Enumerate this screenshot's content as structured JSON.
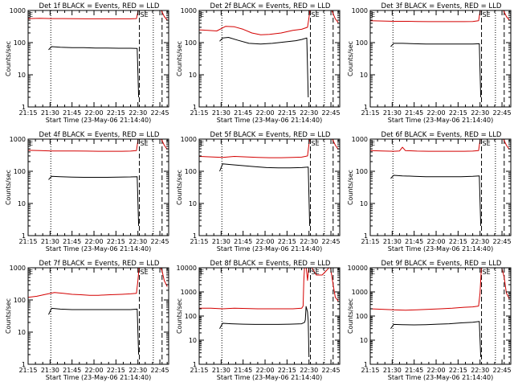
{
  "figure": {
    "y_axis_label": "Counts/sec",
    "x_axis_label": "Start Time (23-May-06 21:14:40)",
    "x_ticks": [
      "21:15",
      "21:30",
      "21:45",
      "22:00",
      "22:15",
      "22:30",
      "22:45"
    ],
    "region_labels": {
      "E": "E",
      "SE": "SE"
    },
    "colors": {
      "background": "#ffffff",
      "events": "#000000",
      "lld": "#d40000",
      "axes": "#000000"
    }
  },
  "chart_data": [
    {
      "type": "line",
      "detector": "1f",
      "title": "Det 1f BLACK = Events, RED = LLD",
      "xlabel": "Start Time (23-May-06 21:14:40)",
      "ylabel": "Counts/sec",
      "y_scale": "log",
      "ylim": [
        1,
        1000
      ],
      "y_tick_labels": [
        "1",
        "10",
        "100",
        "1000"
      ],
      "x_unit": "minutes after 21:14:40",
      "xlim": [
        0,
        96
      ],
      "vlines": {
        "dotted": [
          15.5,
          85.5
        ],
        "dashed": [
          76,
          91.5
        ]
      },
      "series": [
        {
          "name": "BLACK = Events",
          "color": "#000000",
          "x": [
            14,
            16,
            22,
            30,
            38,
            46,
            54,
            62,
            70,
            74.5,
            75.5
          ],
          "y": [
            60,
            75,
            72,
            70,
            70,
            68,
            68,
            67,
            67,
            66,
            2
          ]
        },
        {
          "name": "RED = LLD",
          "color": "#d40000",
          "x": [
            0,
            8,
            16,
            24,
            32,
            40,
            48,
            56,
            64,
            70,
            74,
            75,
            76,
            80,
            84,
            89.5,
            91.5,
            93,
            95
          ],
          "y": [
            560,
            570,
            560,
            560,
            555,
            550,
            550,
            550,
            550,
            550,
            560,
            900,
            1300,
            1300,
            1300,
            1300,
            900,
            650,
            500
          ]
        }
      ]
    },
    {
      "type": "line",
      "detector": "2f",
      "title": "Det 2f BLACK = Events, RED = LLD",
      "xlabel": "Start Time (23-May-06 21:14:40)",
      "ylabel": "Counts/sec",
      "y_scale": "log",
      "ylim": [
        1,
        1000
      ],
      "y_tick_labels": [
        "1",
        "10",
        "100",
        "1000"
      ],
      "x_unit": "minutes after 21:14:40",
      "xlim": [
        0,
        96
      ],
      "vlines": {
        "dotted": [
          15.5,
          85.5
        ],
        "dashed": [
          76,
          91.5
        ]
      },
      "series": [
        {
          "name": "BLACK = Events",
          "color": "#000000",
          "x": [
            14,
            16,
            20,
            26,
            34,
            42,
            50,
            58,
            66,
            70,
            73.5,
            74.5
          ],
          "y": [
            110,
            140,
            145,
            120,
            95,
            90,
            95,
            105,
            115,
            125,
            140,
            2
          ]
        },
        {
          "name": "RED = LLD",
          "color": "#d40000",
          "x": [
            0,
            6,
            12,
            18,
            24,
            30,
            36,
            42,
            48,
            56,
            64,
            70,
            74,
            75,
            76,
            80,
            84,
            89.5,
            91.5,
            93,
            95
          ],
          "y": [
            250,
            240,
            230,
            320,
            310,
            260,
            200,
            175,
            180,
            200,
            240,
            260,
            300,
            600,
            1300,
            1300,
            1300,
            1300,
            800,
            550,
            420
          ]
        }
      ]
    },
    {
      "type": "line",
      "detector": "3f",
      "title": "Det 3f BLACK = Events, RED = LLD",
      "xlabel": "Start Time (23-May-06 21:14:40)",
      "ylabel": "Counts/sec",
      "y_scale": "log",
      "ylim": [
        1,
        1000
      ],
      "y_tick_labels": [
        "1",
        "10",
        "100",
        "1000"
      ],
      "x_unit": "minutes after 21:14:40",
      "xlim": [
        0,
        96
      ],
      "vlines": {
        "dotted": [
          15.5,
          85.5
        ],
        "dashed": [
          76,
          91.5
        ]
      },
      "series": [
        {
          "name": "BLACK = Events",
          "color": "#000000",
          "x": [
            14,
            16,
            22,
            30,
            38,
            46,
            54,
            62,
            70,
            74.5,
            75.5
          ],
          "y": [
            75,
            95,
            95,
            92,
            90,
            90,
            90,
            90,
            90,
            92,
            2
          ]
        },
        {
          "name": "RED = LLD",
          "color": "#d40000",
          "x": [
            0,
            8,
            16,
            24,
            32,
            40,
            48,
            56,
            64,
            70,
            74,
            75,
            76,
            80,
            84,
            89.5,
            91.5,
            93,
            95
          ],
          "y": [
            480,
            470,
            460,
            460,
            455,
            450,
            450,
            450,
            450,
            455,
            480,
            900,
            1300,
            1300,
            1300,
            1300,
            900,
            650,
            500
          ]
        }
      ]
    },
    {
      "type": "line",
      "detector": "4f",
      "title": "Det 4f BLACK = Events, RED = LLD",
      "xlabel": "Start Time (23-May-06 21:14:40)",
      "ylabel": "Counts/sec",
      "y_scale": "log",
      "ylim": [
        1,
        1000
      ],
      "y_tick_labels": [
        "1",
        "10",
        "100",
        "1000"
      ],
      "x_unit": "minutes after 21:14:40",
      "xlim": [
        0,
        96
      ],
      "vlines": {
        "dotted": [
          15.5,
          85.5
        ],
        "dashed": [
          76,
          91.5
        ]
      },
      "series": [
        {
          "name": "BLACK = Events",
          "color": "#000000",
          "x": [
            14,
            16,
            22,
            30,
            38,
            46,
            54,
            62,
            70,
            74.5,
            75.5
          ],
          "y": [
            55,
            70,
            68,
            66,
            65,
            65,
            65,
            66,
            67,
            68,
            2
          ]
        },
        {
          "name": "RED = LLD",
          "color": "#d40000",
          "x": [
            0,
            8,
            16,
            24,
            32,
            40,
            48,
            56,
            64,
            70,
            74,
            75,
            76,
            80,
            84,
            89.5,
            91.5,
            93,
            95
          ],
          "y": [
            450,
            440,
            430,
            430,
            430,
            425,
            420,
            420,
            420,
            425,
            440,
            900,
            1300,
            1300,
            1300,
            1300,
            900,
            650,
            480
          ]
        }
      ]
    },
    {
      "type": "line",
      "detector": "5f",
      "title": "Det 5f BLACK = Events, RED = LLD",
      "xlabel": "Start Time (23-May-06 21:14:40)",
      "ylabel": "Counts/sec",
      "y_scale": "log",
      "ylim": [
        1,
        1000
      ],
      "y_tick_labels": [
        "1",
        "10",
        "100",
        "1000"
      ],
      "x_unit": "minutes after 21:14:40",
      "xlim": [
        0,
        96
      ],
      "vlines": {
        "dotted": [
          15.5,
          85.5
        ],
        "dashed": [
          76,
          91.5
        ]
      },
      "series": [
        {
          "name": "BLACK = Events",
          "color": "#000000",
          "x": [
            14,
            16,
            22,
            30,
            38,
            46,
            54,
            62,
            70,
            74.5,
            75.5
          ],
          "y": [
            100,
            170,
            160,
            150,
            140,
            130,
            128,
            128,
            130,
            135,
            2
          ]
        },
        {
          "name": "RED = LLD",
          "color": "#d40000",
          "x": [
            0,
            8,
            16,
            24,
            32,
            40,
            48,
            56,
            64,
            70,
            74,
            75,
            76,
            80,
            84,
            89.5,
            91.5,
            93,
            95
          ],
          "y": [
            290,
            280,
            270,
            290,
            280,
            270,
            265,
            265,
            270,
            275,
            300,
            700,
            1300,
            1300,
            1300,
            1300,
            900,
            650,
            480
          ]
        }
      ]
    },
    {
      "type": "line",
      "detector": "6f",
      "title": "Det 6f BLACK = Events, RED = LLD",
      "xlabel": "Start Time (23-May-06 21:14:40)",
      "ylabel": "Counts/sec",
      "y_scale": "log",
      "ylim": [
        1,
        1000
      ],
      "y_tick_labels": [
        "1",
        "10",
        "100",
        "1000"
      ],
      "x_unit": "minutes after 21:14:40",
      "xlim": [
        0,
        96
      ],
      "vlines": {
        "dotted": [
          15.5,
          85.5
        ],
        "dashed": [
          76,
          91.5
        ]
      },
      "series": [
        {
          "name": "BLACK = Events",
          "color": "#000000",
          "x": [
            14,
            16,
            22,
            30,
            38,
            46,
            54,
            62,
            70,
            74.5,
            75.5
          ],
          "y": [
            60,
            75,
            72,
            70,
            68,
            68,
            68,
            68,
            70,
            72,
            2
          ]
        },
        {
          "name": "RED = LLD",
          "color": "#d40000",
          "x": [
            0,
            8,
            16,
            20,
            22,
            24,
            32,
            40,
            48,
            56,
            64,
            70,
            74,
            75,
            76,
            80,
            84,
            89.5,
            91.5,
            93,
            95
          ],
          "y": [
            440,
            430,
            420,
            430,
            560,
            440,
            425,
            420,
            420,
            420,
            420,
            425,
            440,
            900,
            1300,
            1300,
            1300,
            1300,
            900,
            650,
            480
          ]
        }
      ]
    },
    {
      "type": "line",
      "detector": "7f",
      "title": "Det 7f BLACK = Events, RED = LLD",
      "xlabel": "Start Time (23-May-06 21:14:40)",
      "ylabel": "Counts/sec",
      "y_scale": "log",
      "ylim": [
        1,
        1000
      ],
      "y_tick_labels": [
        "1",
        "10",
        "100",
        "1000"
      ],
      "x_unit": "minutes after 21:14:40",
      "xlim": [
        0,
        96
      ],
      "vlines": {
        "dotted": [
          15.5,
          85.5
        ],
        "dashed": [
          76,
          91.5
        ]
      },
      "series": [
        {
          "name": "BLACK = Events",
          "color": "#000000",
          "x": [
            14,
            16,
            22,
            30,
            38,
            46,
            54,
            62,
            70,
            74.5,
            75.5
          ],
          "y": [
            35,
            55,
            52,
            50,
            50,
            50,
            50,
            50,
            50,
            52,
            2
          ]
        },
        {
          "name": "RED = LLD",
          "color": "#d40000",
          "x": [
            0,
            6,
            12,
            18,
            24,
            30,
            36,
            42,
            48,
            56,
            64,
            70,
            74,
            75,
            76,
            80,
            84,
            89.5,
            91.5,
            93,
            95
          ],
          "y": [
            120,
            130,
            150,
            170,
            160,
            150,
            145,
            140,
            140,
            145,
            150,
            155,
            160,
            400,
            1300,
            1300,
            1300,
            1300,
            800,
            400,
            260
          ]
        }
      ]
    },
    {
      "type": "line",
      "detector": "8f",
      "title": "Det 8f BLACK = Events, RED = LLD",
      "xlabel": "Start Time (23-May-06 21:14:40)",
      "ylabel": "Counts/sec",
      "y_scale": "log",
      "ylim": [
        1,
        10000
      ],
      "y_tick_labels": [
        "1",
        "10",
        "100",
        "1000",
        "10000"
      ],
      "x_unit": "minutes after 21:14:40",
      "xlim": [
        0,
        96
      ],
      "vlines": {
        "dotted": [
          15.5,
          85.5
        ],
        "dashed": [
          76,
          91.5
        ]
      },
      "series": [
        {
          "name": "BLACK = Events",
          "color": "#000000",
          "x": [
            14,
            16,
            22,
            30,
            38,
            46,
            54,
            62,
            70,
            72,
            72.5,
            73,
            74,
            74.5,
            75
          ],
          "y": [
            30,
            50,
            48,
            46,
            45,
            45,
            45,
            46,
            48,
            55,
            70,
            250,
            150,
            60,
            2
          ]
        },
        {
          "name": "RED = LLD",
          "color": "#d40000",
          "x": [
            0,
            8,
            16,
            24,
            32,
            40,
            48,
            56,
            64,
            70,
            71,
            71.5,
            72,
            73,
            74,
            75,
            76,
            78,
            80,
            84,
            88,
            89.5,
            91.5,
            93,
            95
          ],
          "y": [
            210,
            210,
            200,
            210,
            205,
            200,
            200,
            200,
            200,
            210,
            260,
            3000,
            12000,
            12000,
            3000,
            12000,
            12000,
            8000,
            5000,
            5000,
            9000,
            12000,
            2000,
            600,
            420
          ]
        }
      ]
    },
    {
      "type": "line",
      "detector": "9f",
      "title": "Det 9f BLACK = Events, RED = LLD",
      "xlabel": "Start Time (23-May-06 21:14:40)",
      "ylabel": "Counts/sec",
      "y_scale": "log",
      "ylim": [
        1,
        10000
      ],
      "y_tick_labels": [
        "1",
        "10",
        "100",
        "1000",
        "10000"
      ],
      "x_unit": "minutes after 21:14:40",
      "xlim": [
        0,
        96
      ],
      "vlines": {
        "dotted": [
          15.5,
          85.5
        ],
        "dashed": [
          76,
          91.5
        ]
      },
      "series": [
        {
          "name": "BLACK = Events",
          "color": "#000000",
          "x": [
            14,
            16,
            22,
            30,
            38,
            46,
            54,
            62,
            70,
            74.5,
            75.5
          ],
          "y": [
            30,
            45,
            44,
            43,
            44,
            46,
            48,
            52,
            55,
            60,
            2
          ]
        },
        {
          "name": "RED = LLD",
          "color": "#d40000",
          "x": [
            0,
            8,
            16,
            24,
            32,
            40,
            48,
            56,
            64,
            70,
            74,
            75,
            76,
            80,
            84,
            89.5,
            91.5,
            93,
            95
          ],
          "y": [
            200,
            190,
            180,
            175,
            180,
            190,
            200,
            210,
            230,
            240,
            260,
            900,
            12000,
            12000,
            12000,
            12000,
            4000,
            900,
            520
          ]
        }
      ]
    }
  ]
}
